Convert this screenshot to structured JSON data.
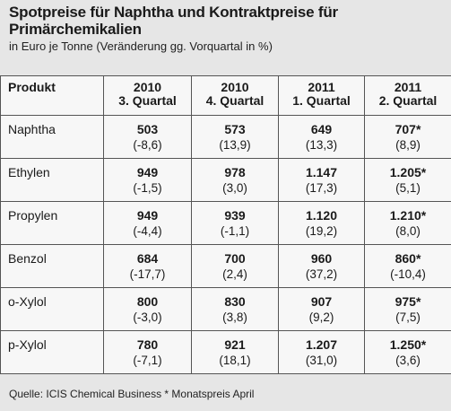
{
  "title": "Spotpreise für Naphtha und Kontraktpreise für Primärchemikalien",
  "subtitle": "in Euro je Tonne (Veränderung gg. Vorquartal in %)",
  "table": {
    "headers": [
      {
        "line1": "Produkt",
        "line2": ""
      },
      {
        "line1": "2010",
        "line2": "3. Quartal"
      },
      {
        "line1": "2010",
        "line2": "4. Quartal"
      },
      {
        "line1": "2011",
        "line2": "1. Quartal"
      },
      {
        "line1": "2011",
        "line2": "2. Quartal"
      }
    ],
    "rows": [
      {
        "product": "Naphtha",
        "cells": [
          {
            "value": "503",
            "change": "(-8,6)"
          },
          {
            "value": "573",
            "change": "(13,9)"
          },
          {
            "value": "649",
            "change": "(13,3)"
          },
          {
            "value": "707*",
            "change": "(8,9)"
          }
        ]
      },
      {
        "product": "Ethylen",
        "cells": [
          {
            "value": "949",
            "change": "(-1,5)"
          },
          {
            "value": "978",
            "change": "(3,0)"
          },
          {
            "value": "1.147",
            "change": "(17,3)"
          },
          {
            "value": "1.205*",
            "change": "(5,1)"
          }
        ]
      },
      {
        "product": "Propylen",
        "cells": [
          {
            "value": "949",
            "change": "(-4,4)"
          },
          {
            "value": "939",
            "change": "(-1,1)"
          },
          {
            "value": "1.120",
            "change": "(19,2)"
          },
          {
            "value": "1.210*",
            "change": "(8,0)"
          }
        ]
      },
      {
        "product": "Benzol",
        "cells": [
          {
            "value": "684",
            "change": "(-17,7)"
          },
          {
            "value": "700",
            "change": "(2,4)"
          },
          {
            "value": "960",
            "change": "(37,2)"
          },
          {
            "value": "860*",
            "change": "(-10,4)"
          }
        ]
      },
      {
        "product": "o-Xylol",
        "cells": [
          {
            "value": "800",
            "change": "(-3,0)"
          },
          {
            "value": "830",
            "change": "(3,8)"
          },
          {
            "value": "907",
            "change": "(9,2)"
          },
          {
            "value": "975*",
            "change": "(7,5)"
          }
        ]
      },
      {
        "product": "p-Xylol",
        "cells": [
          {
            "value": "780",
            "change": "(-7,1)"
          },
          {
            "value": "921",
            "change": "(18,1)"
          },
          {
            "value": "1.207",
            "change": "(31,0)"
          },
          {
            "value": "1.250*",
            "change": "(3,6)"
          }
        ]
      }
    ]
  },
  "source": "Quelle: ICIS Chemical Business  * Monatspreis April"
}
